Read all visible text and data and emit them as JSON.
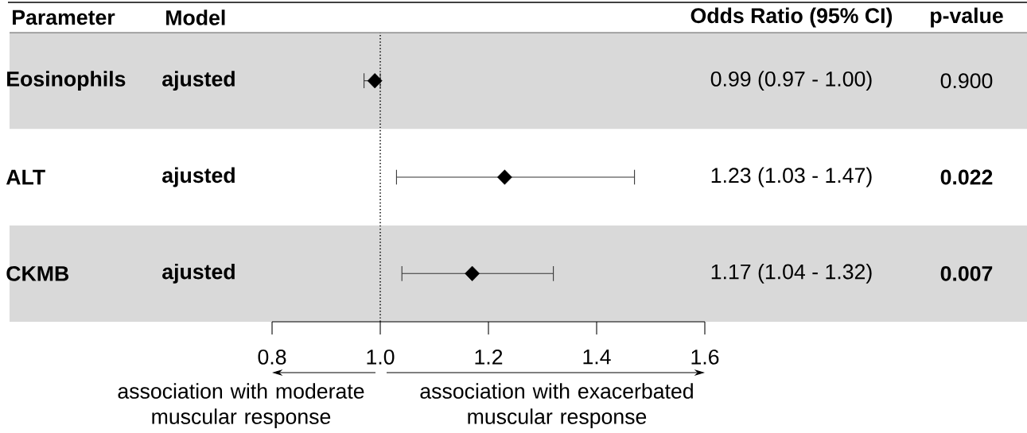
{
  "chart_data": {
    "type": "scatter",
    "orientation": "horizontal",
    "categories": [
      "Eosinophils",
      "ALT",
      "CKMB"
    ],
    "xlim": [
      0.8,
      1.6
    ],
    "xticks": [
      0.8,
      {
        "value": 1,
        "label": "1.0"
      },
      1.2,
      1.4,
      1.6
    ],
    "marker": "diamond",
    "series": [
      {
        "color": "#000000",
        "values": [
          0.99,
          1.23,
          1.17
        ],
        "errors": [
          [
            0.97,
            1.0
          ],
          [
            1.03,
            1.47
          ],
          [
            1.04,
            1.32
          ]
        ],
        "value_labels": [
          "0.99 (0.97 - 1.00)",
          "1.23 (1.03 - 1.47)",
          "1.17 (1.04 - 1.32)"
        ]
      }
    ],
    "ref_lines": [
      {
        "axis": "x",
        "value": 1,
        "line_style": "dotted",
        "color": "#000000"
      }
    ],
    "bands": [
      {
        "axis": "y",
        "from": "Eosinophils",
        "to": "Eosinophils",
        "color": "#d9d9d9"
      },
      {
        "axis": "y",
        "from": "CKMB",
        "to": "CKMB",
        "color": "#d9d9d9"
      }
    ],
    "annotations": [
      "Parameter",
      "Model",
      "Odds Ratio (95% CI)",
      "p-value",
      "ajusted",
      "ajusted",
      "ajusted",
      "0.900",
      "**0.022**",
      "**0.007**",
      "association with moderate muscular response",
      "association with exacerbated muscular response"
    ]
  }
}
